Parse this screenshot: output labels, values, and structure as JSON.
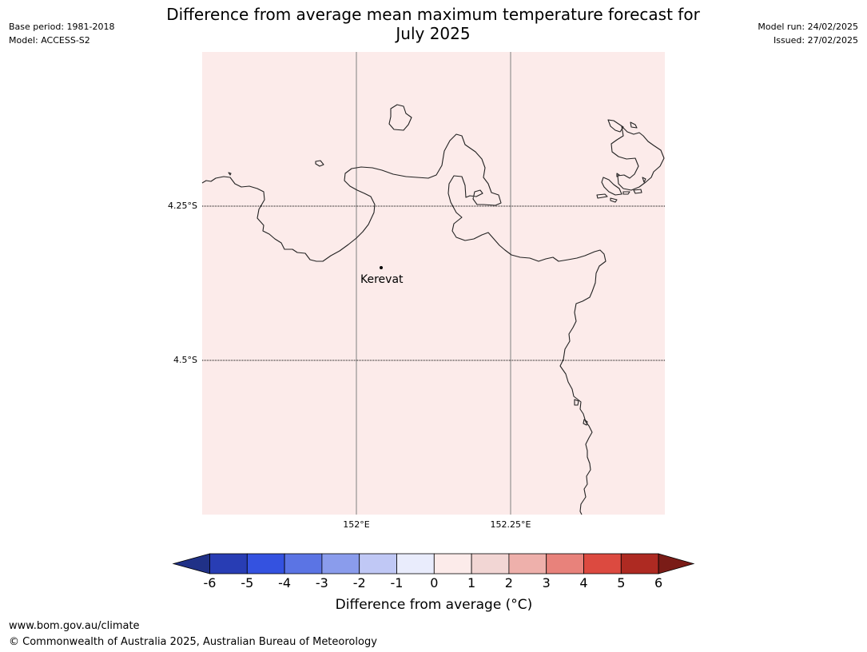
{
  "header": {
    "title_line1": "Difference from average mean maximum temperature forecast for",
    "title_line2": "July 2025",
    "base_period": "Base period: 1981-2018",
    "model": "Model: ACCESS-S2",
    "model_run": "Model run: 24/02/2025",
    "issued": "Issued: 27/02/2025"
  },
  "map": {
    "fill_color": "#fcebea",
    "latitude_labels": [
      "4.25°S",
      "4.5°S"
    ],
    "longitude_labels": [
      "152°E",
      "152.25°E"
    ],
    "place": {
      "name": "Kerevat"
    }
  },
  "colorbar": {
    "ticks": [
      "-6",
      "-5",
      "-4",
      "-3",
      "-2",
      "-1",
      "0",
      "1",
      "2",
      "3",
      "4",
      "5",
      "6"
    ],
    "colors": [
      "#203187",
      "#283db4",
      "#3452e0",
      "#5b74e4",
      "#8a9cec",
      "#c0c8f5",
      "#e9ecfc",
      "#fcebea",
      "#f2d6d4",
      "#eeb0ab",
      "#e8827b",
      "#dc4a40",
      "#ae2a22",
      "#7a1c17"
    ],
    "label": "Difference from average (°C)"
  },
  "footer": {
    "url": "www.bom.gov.au/climate",
    "copyright": "© Commonwealth of Australia 2025, Australian Bureau of Meteorology"
  }
}
